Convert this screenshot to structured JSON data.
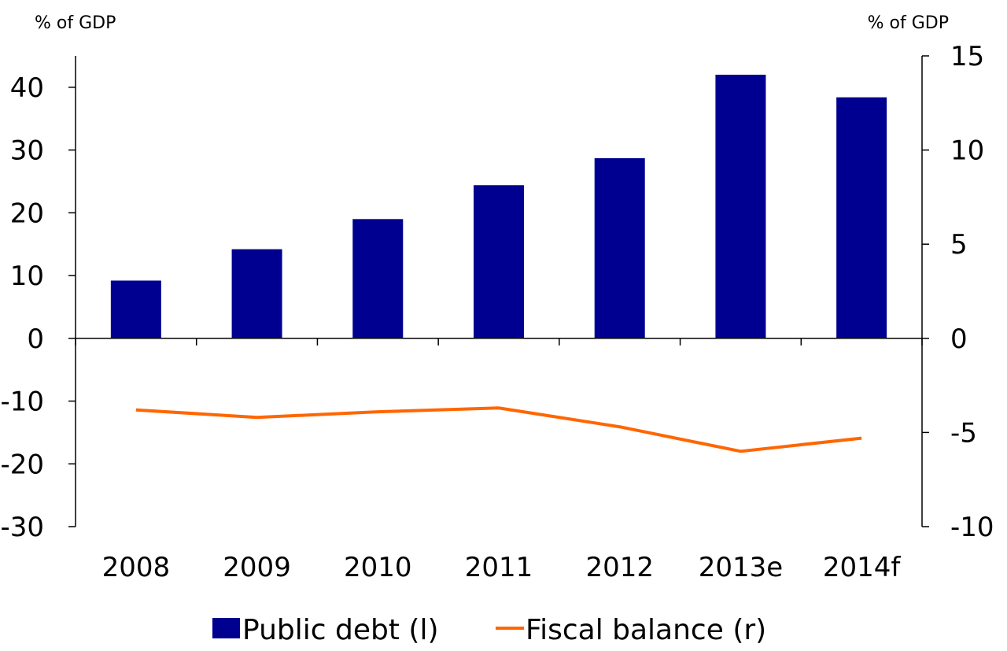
{
  "chart_data": {
    "type": "bar",
    "categories": [
      "2008",
      "2009",
      "2010",
      "2011",
      "2012",
      "2013e",
      "2014f"
    ],
    "left_axis": {
      "unit_label": "% of GDP",
      "ylim": [
        -30,
        45
      ],
      "ticks": [
        {
          "value": 40,
          "label": "40"
        },
        {
          "value": 30,
          "label": "30"
        },
        {
          "value": 20,
          "label": "20"
        },
        {
          "value": 10,
          "label": "10"
        },
        {
          "value": 0,
          "label": "0"
        },
        {
          "value": -10,
          "label": "-10"
        },
        {
          "value": -20,
          "label": "-20"
        },
        {
          "value": -30,
          "label": "-30"
        }
      ]
    },
    "right_axis": {
      "unit_label": "% of GDP",
      "ylim": [
        -10,
        15
      ],
      "ticks": [
        {
          "value": 15,
          "label": "15"
        },
        {
          "value": 10,
          "label": "10"
        },
        {
          "value": 5,
          "label": "5"
        },
        {
          "value": 0,
          "label": "0"
        },
        {
          "value": -5,
          "label": "-5"
        },
        {
          "value": -10,
          "label": "-10"
        }
      ]
    },
    "series": [
      {
        "name": "Public debt (l)",
        "type": "bar",
        "axis": "left",
        "color": "#000090",
        "values": [
          9.2,
          14.2,
          19.0,
          24.4,
          28.7,
          42.0,
          38.4
        ]
      },
      {
        "name": "Fiscal balance (r)",
        "type": "line",
        "axis": "right",
        "color": "#ff6600",
        "values": [
          -3.8,
          -4.2,
          -3.9,
          -3.7,
          -4.7,
          -6.0,
          -5.3
        ]
      }
    ],
    "legend_position": "bottom",
    "grid": false
  }
}
